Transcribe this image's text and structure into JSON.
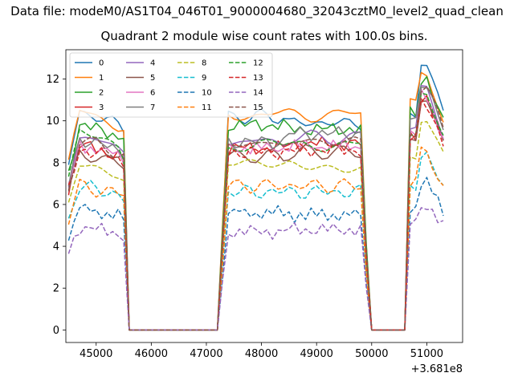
{
  "suptitle": "Data file: modeM0/AS1T04_046T01_9000004680_32043cztM0_level2_quad_clean",
  "chart_data": {
    "type": "line",
    "title": "Quadrant 2 module wise count rates with 100.0s bins.",
    "xlabel": "",
    "ylabel": "",
    "x_offset_label": "+3.681e8",
    "xlim": [
      44450,
      51650
    ],
    "ylim": [
      -0.6,
      13.4
    ],
    "xticks": [
      45000,
      46000,
      47000,
      48000,
      49000,
      50000,
      51000
    ],
    "yticks": [
      0,
      2,
      4,
      6,
      8,
      10,
      12
    ],
    "grid": false,
    "legend_position": "top-left",
    "legend_columns": 4,
    "x": [
      44500,
      44600,
      44700,
      44800,
      44900,
      45000,
      45100,
      45200,
      45300,
      45400,
      45500,
      45600,
      45700,
      45800,
      45900,
      46000,
      46100,
      46200,
      46300,
      46400,
      46500,
      46600,
      46700,
      46800,
      46900,
      47000,
      47100,
      47200,
      47300,
      47400,
      47500,
      47600,
      47700,
      47800,
      47900,
      48000,
      48100,
      48200,
      48300,
      48400,
      48500,
      48600,
      48700,
      48800,
      48900,
      49000,
      49100,
      49200,
      49300,
      49400,
      49500,
      49600,
      49700,
      49800,
      49900,
      50000,
      50100,
      50200,
      50300,
      50400,
      50500,
      50600,
      50700,
      50800,
      50900,
      51000,
      51100,
      51200,
      51300
    ],
    "gap_mask": [
      1,
      1,
      1,
      1,
      1,
      1,
      1,
      1,
      1,
      1,
      1,
      0,
      0,
      0,
      0,
      0,
      0,
      0,
      0,
      0,
      0,
      0,
      0,
      0,
      0,
      0,
      0,
      0,
      1,
      1,
      1,
      1,
      1,
      1,
      1,
      1,
      1,
      1,
      1,
      1,
      1,
      1,
      1,
      1,
      1,
      1,
      1,
      1,
      1,
      1,
      1,
      1,
      1,
      1,
      1,
      0,
      0,
      0,
      0,
      0,
      0,
      0,
      1,
      1,
      1,
      1,
      1,
      1,
      1
    ],
    "series": [
      {
        "name": "0",
        "color": "#1f77b4",
        "dashed": false,
        "base": [
          10.6,
          10.2,
          9.9,
          9.6,
          12.8
        ]
      },
      {
        "name": "1",
        "color": "#ff7f0e",
        "dashed": false,
        "base": [
          10.6,
          10.3,
          10.3,
          10.2,
          12.2
        ]
      },
      {
        "name": "2",
        "color": "#2ca02c",
        "dashed": false,
        "base": [
          10.0,
          9.8,
          9.6,
          9.9,
          12.0
        ]
      },
      {
        "name": "3",
        "color": "#d62728",
        "dashed": false,
        "base": [
          9.0,
          8.7,
          8.9,
          8.9,
          11.0
        ]
      },
      {
        "name": "4",
        "color": "#9467bd",
        "dashed": false,
        "base": [
          9.4,
          9.0,
          9.2,
          9.1,
          11.5
        ]
      },
      {
        "name": "5",
        "color": "#8c564b",
        "dashed": false,
        "base": [
          8.6,
          8.3,
          8.5,
          8.6,
          11.0
        ]
      },
      {
        "name": "6",
        "color": "#e377c2",
        "dashed": false,
        "base": [
          9.0,
          8.7,
          8.8,
          8.9,
          11.2
        ]
      },
      {
        "name": "7",
        "color": "#7f7f7f",
        "dashed": false,
        "base": [
          9.3,
          9.0,
          9.4,
          9.4,
          11.8
        ]
      },
      {
        "name": "8",
        "color": "#bcbd22",
        "dashed": true,
        "base": [
          8.2,
          7.8,
          7.9,
          7.8,
          10.0
        ]
      },
      {
        "name": "9",
        "color": "#17becf",
        "dashed": true,
        "base": [
          7.0,
          6.6,
          6.6,
          6.7,
          8.3
        ]
      },
      {
        "name": "10",
        "color": "#1f77b4",
        "dashed": true,
        "base": [
          5.9,
          5.6,
          5.5,
          5.6,
          7.0
        ]
      },
      {
        "name": "11",
        "color": "#ff7f0e",
        "dashed": true,
        "base": [
          7.0,
          6.9,
          6.9,
          6.8,
          8.4
        ]
      },
      {
        "name": "12",
        "color": "#2ca02c",
        "dashed": true,
        "base": [
          9.5,
          8.8,
          8.9,
          9.0,
          11.4
        ]
      },
      {
        "name": "13",
        "color": "#d62728",
        "dashed": true,
        "base": [
          8.8,
          8.5,
          8.6,
          8.7,
          10.9
        ]
      },
      {
        "name": "14",
        "color": "#9467bd",
        "dashed": true,
        "base": [
          5.0,
          4.7,
          4.8,
          4.9,
          6.0
        ]
      },
      {
        "name": "15",
        "color": "#8c564b",
        "dashed": true,
        "base": [
          9.2,
          8.9,
          9.0,
          9.1,
          11.6
        ]
      }
    ]
  }
}
